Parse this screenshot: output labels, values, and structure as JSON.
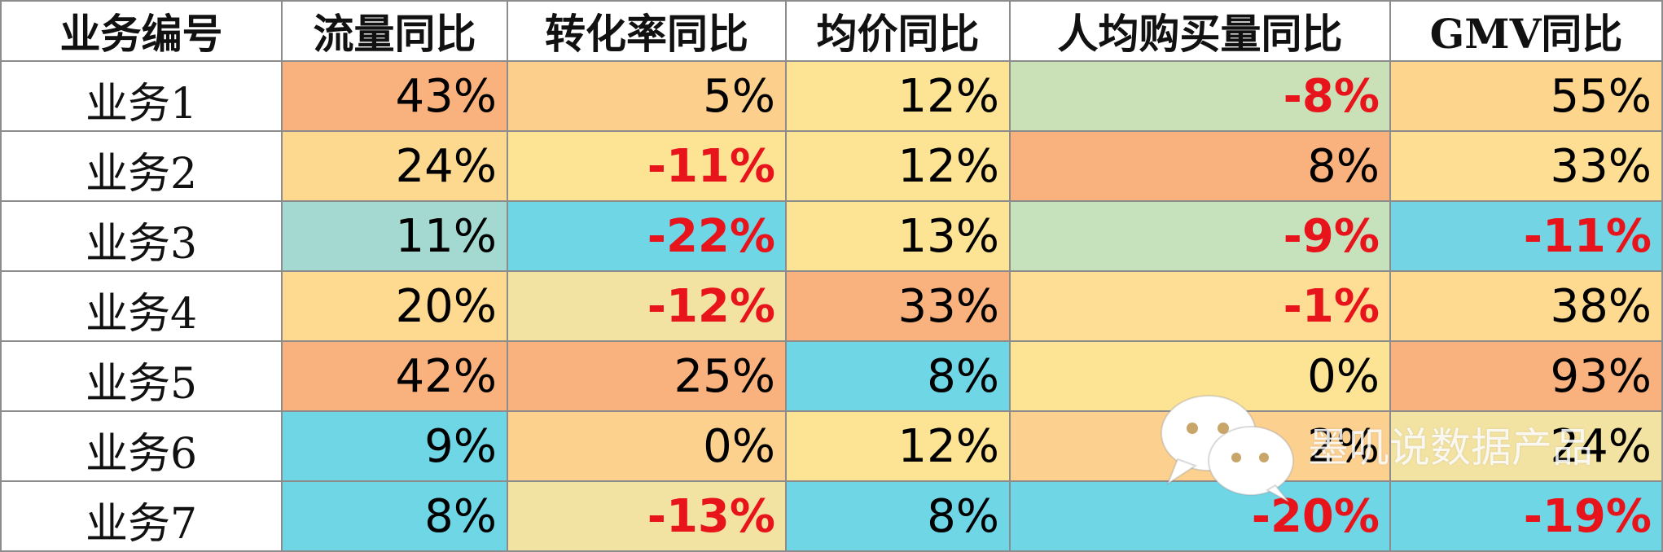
{
  "chart_data": {
    "type": "table",
    "columns": [
      "业务编号",
      "流量同比",
      "转化率同比",
      "均价同比",
      "人均购买量同比",
      "GMV同比"
    ],
    "rows": [
      {
        "name": "业务1",
        "values": [
          "43%",
          "5%",
          "12%",
          "-8%",
          "55%"
        ],
        "numbers": [
          43,
          5,
          12,
          -8,
          55
        ],
        "fills": [
          "#f9b27e",
          "#fdcf8d",
          "#fde494",
          "#cae1b8",
          "#fdd58d"
        ]
      },
      {
        "name": "业务2",
        "values": [
          "24%",
          "-11%",
          "12%",
          "8%",
          "33%"
        ],
        "numbers": [
          24,
          -11,
          12,
          8,
          33
        ],
        "fills": [
          "#fdd88f",
          "#fde494",
          "#fde494",
          "#f9b27e",
          "#fdde92"
        ]
      },
      {
        "name": "业务3",
        "values": [
          "11%",
          "-22%",
          "13%",
          "-9%",
          "-11%"
        ],
        "numbers": [
          11,
          -22,
          13,
          -9,
          -11
        ],
        "fills": [
          "#a3d9d0",
          "#6fd6e6",
          "#fde394",
          "#c6e2bc",
          "#73d4e4"
        ]
      },
      {
        "name": "业务4",
        "values": [
          "20%",
          "-12%",
          "33%",
          "-1%",
          "38%"
        ],
        "numbers": [
          20,
          -12,
          33,
          -1,
          38
        ],
        "fills": [
          "#fdda90",
          "#f3e3a2",
          "#f9b27e",
          "#fedd94",
          "#fdda90"
        ]
      },
      {
        "name": "业务5",
        "values": [
          "42%",
          "25%",
          "8%",
          "0%",
          "93%"
        ],
        "numbers": [
          42,
          25,
          8,
          0,
          93
        ],
        "fills": [
          "#f9b27e",
          "#f9b27e",
          "#6fd6e6",
          "#fde494",
          "#f9b27e"
        ]
      },
      {
        "name": "业务6",
        "values": [
          "9%",
          "0%",
          "12%",
          "2%",
          "24%"
        ],
        "numbers": [
          9,
          0,
          12,
          2,
          24
        ],
        "fills": [
          "#6fd6e6",
          "#fcd08d",
          "#fde494",
          "#fcd08f",
          "#f3e3a2"
        ]
      },
      {
        "name": "业务7",
        "values": [
          "8%",
          "-13%",
          "8%",
          "-20%",
          "-19%"
        ],
        "numbers": [
          8,
          -13,
          8,
          -20,
          -19
        ],
        "fills": [
          "#6fd6e6",
          "#f3e3a2",
          "#6fd6e6",
          "#6fd6e6",
          "#6fd6e6"
        ]
      }
    ],
    "negative_color": "#e8141b"
  },
  "watermark": {
    "text": "墨叽说数据产品",
    "icon": "wechat-icon"
  }
}
